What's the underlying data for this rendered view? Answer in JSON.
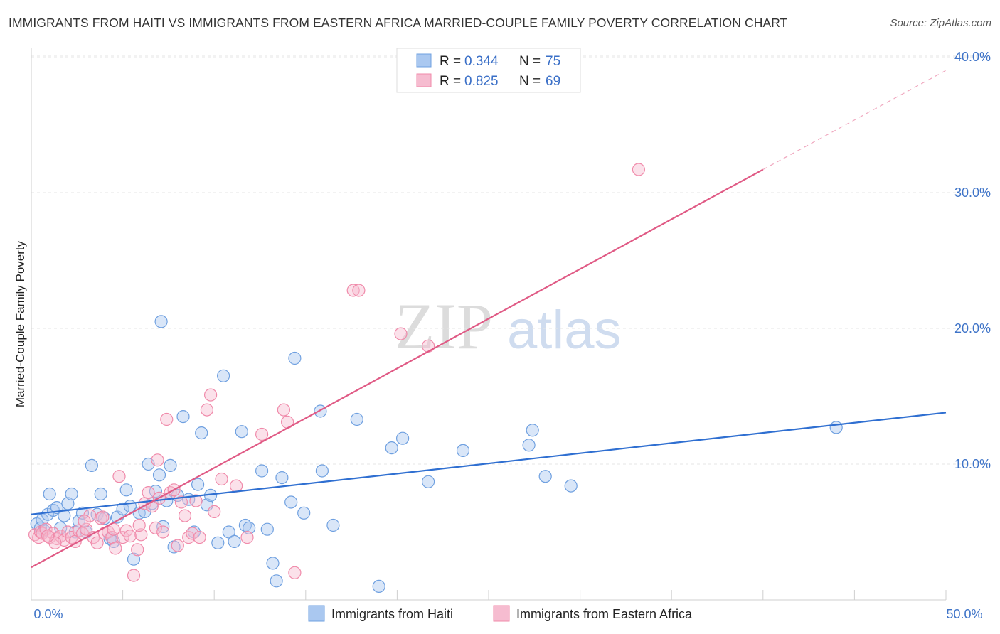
{
  "header": {
    "title": "IMMIGRANTS FROM HAITI VS IMMIGRANTS FROM EASTERN AFRICA MARRIED-COUPLE FAMILY POVERTY CORRELATION CHART",
    "source": "Source: ZipAtlas.com"
  },
  "watermark": {
    "zip": "ZIP",
    "atlas": "atlas"
  },
  "legend": {
    "rows": [
      {
        "r_label": "R = ",
        "r_value": "0.344",
        "n_label": "N = ",
        "n_value": "75"
      },
      {
        "r_label": "R = ",
        "r_value": "0.825",
        "n_label": "N = ",
        "n_value": "69"
      }
    ]
  },
  "chart_data": {
    "type": "scatter",
    "title": "IMMIGRANTS FROM HAITI VS IMMIGRANTS FROM EASTERN AFRICA MARRIED-COUPLE FAMILY POVERTY CORRELATION CHART",
    "xlabel": "",
    "ylabel": "Married-Couple Family Poverty",
    "xlim": [
      0,
      50
    ],
    "ylim": [
      0,
      42
    ],
    "x_tick_labels": [
      "0.0%",
      "50.0%"
    ],
    "y_ticks": [
      10,
      20,
      30,
      40
    ],
    "y_tick_labels": [
      "10.0%",
      "20.0%",
      "30.0%",
      "40.0%"
    ],
    "grid": true,
    "legend_position": "top-center",
    "series": [
      {
        "name": "Immigrants from Haiti",
        "color": "#6fa0e0",
        "fill": "#aac8f0",
        "line_color": "#2f6fd1",
        "r": 0.344,
        "n": 75,
        "trend": {
          "x": [
            0,
            50
          ],
          "y": [
            6.3,
            13.8
          ]
        },
        "points": [
          [
            0.3,
            5.6
          ],
          [
            0.5,
            5.3
          ],
          [
            0.6,
            5.9
          ],
          [
            0.7,
            5.1
          ],
          [
            0.9,
            6.3
          ],
          [
            1.0,
            7.8
          ],
          [
            1.2,
            6.6
          ],
          [
            1.4,
            6.8
          ],
          [
            1.6,
            5.3
          ],
          [
            1.8,
            6.2
          ],
          [
            2.0,
            7.1
          ],
          [
            2.2,
            7.8
          ],
          [
            2.4,
            5.0
          ],
          [
            2.6,
            5.8
          ],
          [
            2.8,
            6.4
          ],
          [
            3.0,
            5.0
          ],
          [
            3.3,
            9.9
          ],
          [
            3.6,
            6.3
          ],
          [
            3.8,
            7.8
          ],
          [
            4.0,
            6.0
          ],
          [
            4.3,
            4.5
          ],
          [
            4.5,
            4.3
          ],
          [
            4.7,
            6.1
          ],
          [
            5.0,
            6.7
          ],
          [
            5.2,
            8.1
          ],
          [
            5.4,
            6.9
          ],
          [
            5.6,
            3.0
          ],
          [
            5.9,
            6.4
          ],
          [
            6.2,
            6.5
          ],
          [
            6.4,
            10.0
          ],
          [
            6.6,
            7.1
          ],
          [
            6.8,
            8.0
          ],
          [
            7.0,
            9.2
          ],
          [
            7.2,
            5.4
          ],
          [
            7.4,
            7.3
          ],
          [
            7.6,
            9.9
          ],
          [
            7.8,
            3.9
          ],
          [
            8.0,
            7.7
          ],
          [
            8.3,
            13.5
          ],
          [
            8.6,
            7.4
          ],
          [
            8.9,
            5.0
          ],
          [
            9.1,
            8.5
          ],
          [
            9.3,
            12.3
          ],
          [
            9.6,
            7.0
          ],
          [
            9.8,
            7.7
          ],
          [
            10.2,
            4.2
          ],
          [
            10.5,
            16.5
          ],
          [
            10.8,
            5.0
          ],
          [
            11.1,
            4.3
          ],
          [
            11.5,
            12.4
          ],
          [
            11.7,
            5.5
          ],
          [
            11.9,
            5.3
          ],
          [
            12.6,
            9.5
          ],
          [
            12.9,
            5.2
          ],
          [
            13.2,
            2.7
          ],
          [
            13.4,
            1.4
          ],
          [
            13.7,
            9.0
          ],
          [
            14.2,
            7.2
          ],
          [
            14.4,
            17.8
          ],
          [
            14.9,
            6.4
          ],
          [
            15.8,
            13.9
          ],
          [
            15.9,
            9.5
          ],
          [
            16.5,
            5.5
          ],
          [
            17.8,
            13.3
          ],
          [
            19.0,
            1.0
          ],
          [
            19.7,
            11.2
          ],
          [
            20.3,
            11.9
          ],
          [
            21.7,
            8.7
          ],
          [
            23.6,
            11.0
          ],
          [
            27.2,
            11.4
          ],
          [
            27.4,
            12.5
          ],
          [
            28.1,
            9.1
          ],
          [
            29.5,
            8.4
          ],
          [
            44.0,
            12.7
          ],
          [
            7.1,
            20.5
          ]
        ]
      },
      {
        "name": "Immigrants from Eastern Africa",
        "color": "#f08aaa",
        "fill": "#f6bcd0",
        "line_color": "#e05a85",
        "r": 0.825,
        "n": 69,
        "trend": {
          "x": [
            0,
            40
          ],
          "y": [
            2.4,
            31.7
          ]
        },
        "trend_dashed": {
          "x": [
            40,
            50
          ],
          "y": [
            31.7,
            39.0
          ]
        },
        "points": [
          [
            0.2,
            4.8
          ],
          [
            0.4,
            4.6
          ],
          [
            0.5,
            5.0
          ],
          [
            0.6,
            4.9
          ],
          [
            0.8,
            5.2
          ],
          [
            1.0,
            4.6
          ],
          [
            1.2,
            4.9
          ],
          [
            1.4,
            4.5
          ],
          [
            1.6,
            4.7
          ],
          [
            1.8,
            4.4
          ],
          [
            2.0,
            5.0
          ],
          [
            2.2,
            4.6
          ],
          [
            2.4,
            4.3
          ],
          [
            2.6,
            5.1
          ],
          [
            2.8,
            4.9
          ],
          [
            3.0,
            5.2
          ],
          [
            3.2,
            6.2
          ],
          [
            3.4,
            4.6
          ],
          [
            3.6,
            4.2
          ],
          [
            3.8,
            6.0
          ],
          [
            4.0,
            4.9
          ],
          [
            4.2,
            5.0
          ],
          [
            4.4,
            4.6
          ],
          [
            4.6,
            3.8
          ],
          [
            4.8,
            9.1
          ],
          [
            5.0,
            4.6
          ],
          [
            5.2,
            5.1
          ],
          [
            5.4,
            4.7
          ],
          [
            5.6,
            1.8
          ],
          [
            5.8,
            3.7
          ],
          [
            6.0,
            4.8
          ],
          [
            6.2,
            7.1
          ],
          [
            6.4,
            7.9
          ],
          [
            6.6,
            6.9
          ],
          [
            6.8,
            5.3
          ],
          [
            7.0,
            7.5
          ],
          [
            7.2,
            5.0
          ],
          [
            7.4,
            13.3
          ],
          [
            7.6,
            7.9
          ],
          [
            7.8,
            8.1
          ],
          [
            8.0,
            4.0
          ],
          [
            8.2,
            7.2
          ],
          [
            8.4,
            6.2
          ],
          [
            8.6,
            4.6
          ],
          [
            8.8,
            4.9
          ],
          [
            9.0,
            7.3
          ],
          [
            9.2,
            4.6
          ],
          [
            9.6,
            14.0
          ],
          [
            9.8,
            15.1
          ],
          [
            10.0,
            6.5
          ],
          [
            10.4,
            8.9
          ],
          [
            11.2,
            8.4
          ],
          [
            11.8,
            4.6
          ],
          [
            12.6,
            12.2
          ],
          [
            13.8,
            14.0
          ],
          [
            14.0,
            13.1
          ],
          [
            14.4,
            2.0
          ],
          [
            17.6,
            22.8
          ],
          [
            17.9,
            22.8
          ],
          [
            20.2,
            19.6
          ],
          [
            21.7,
            18.7
          ],
          [
            33.2,
            31.7
          ],
          [
            6.9,
            10.3
          ],
          [
            3.9,
            6.1
          ],
          [
            2.9,
            5.8
          ],
          [
            1.3,
            4.2
          ],
          [
            0.9,
            4.7
          ],
          [
            4.5,
            5.2
          ],
          [
            5.9,
            5.5
          ]
        ]
      }
    ]
  },
  "bottom_legend": {
    "items": [
      {
        "label": "Immigrants from Haiti"
      },
      {
        "label": "Immigrants from Eastern Africa"
      }
    ]
  }
}
